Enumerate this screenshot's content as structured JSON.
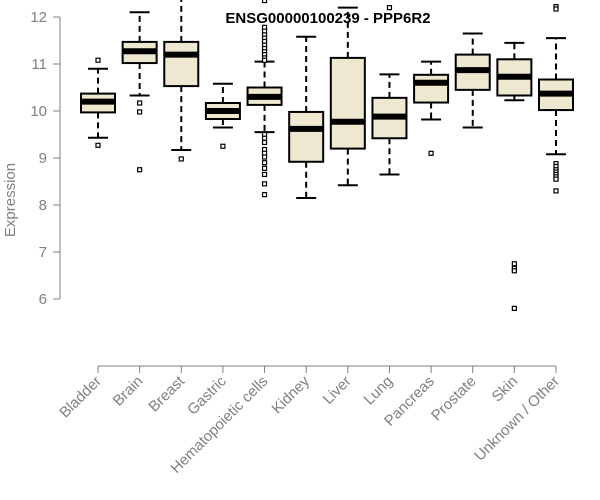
{
  "chart_data": {
    "type": "boxplot",
    "title": "ENSG00000100239 - PPP6R2",
    "xlabel": "",
    "ylabel": "Expression",
    "ylim": [
      5.6,
      12.6
    ],
    "yticks": [
      6,
      7,
      8,
      9,
      10,
      11,
      12
    ],
    "grid": false,
    "colors": {
      "box_fill": "#efe8d0",
      "stroke": "#000000",
      "axis": "#808080"
    },
    "categories": [
      "Bladder",
      "Brain",
      "Breast",
      "Gastric",
      "Hematopoietic cells",
      "Kidney",
      "Liver",
      "Lung",
      "Pancreas",
      "Prostate",
      "Skin",
      "Unknown / Other"
    ],
    "boxes": [
      {
        "q1": 9.97,
        "median": 10.2,
        "q3": 10.37,
        "whisker_low": 9.43,
        "whisker_high": 10.9,
        "outliers": [
          9.27,
          11.08
        ]
      },
      {
        "q1": 11.02,
        "median": 11.27,
        "q3": 11.47,
        "whisker_low": 10.33,
        "whisker_high": 12.1,
        "outliers": [
          10.17,
          9.98,
          8.75
        ]
      },
      {
        "q1": 10.53,
        "median": 11.2,
        "q3": 11.47,
        "whisker_low": 9.17,
        "whisker_high": 12.45,
        "outliers": [
          8.98
        ]
      },
      {
        "q1": 9.83,
        "median": 10.0,
        "q3": 10.17,
        "whisker_low": 9.65,
        "whisker_high": 10.58,
        "outliers": [
          9.25
        ]
      },
      {
        "q1": 10.13,
        "median": 10.3,
        "q3": 10.5,
        "whisker_low": 9.55,
        "whisker_high": 11.05,
        "outliers": [
          12.35,
          11.78,
          11.7,
          11.62,
          11.55,
          11.48,
          11.4,
          11.33,
          11.26,
          11.2,
          11.13,
          11.08,
          9.5,
          9.42,
          9.33,
          9.18,
          9.1,
          9.02,
          8.9,
          8.78,
          8.65,
          8.45,
          8.22
        ]
      },
      {
        "q1": 8.92,
        "median": 9.62,
        "q3": 9.98,
        "whisker_low": 8.15,
        "whisker_high": 11.58,
        "outliers": []
      },
      {
        "q1": 9.2,
        "median": 9.77,
        "q3": 11.13,
        "whisker_low": 8.42,
        "whisker_high": 12.2,
        "outliers": []
      },
      {
        "q1": 9.42,
        "median": 9.88,
        "q3": 10.28,
        "whisker_low": 8.65,
        "whisker_high": 10.78,
        "outliers": [
          12.2
        ]
      },
      {
        "q1": 10.18,
        "median": 10.6,
        "q3": 10.77,
        "whisker_low": 9.82,
        "whisker_high": 11.05,
        "outliers": [
          9.1
        ]
      },
      {
        "q1": 10.45,
        "median": 10.87,
        "q3": 11.2,
        "whisker_low": 9.65,
        "whisker_high": 11.65,
        "outliers": []
      },
      {
        "q1": 10.33,
        "median": 10.73,
        "q3": 11.1,
        "whisker_low": 10.23,
        "whisker_high": 11.45,
        "outliers": [
          6.75,
          6.65,
          6.6,
          5.8
        ]
      },
      {
        "q1": 10.02,
        "median": 10.37,
        "q3": 10.67,
        "whisker_low": 9.08,
        "whisker_high": 11.55,
        "outliers": [
          12.22,
          12.17,
          8.88,
          8.82,
          8.75,
          8.7,
          8.65,
          8.6,
          8.55,
          8.3
        ]
      }
    ]
  }
}
